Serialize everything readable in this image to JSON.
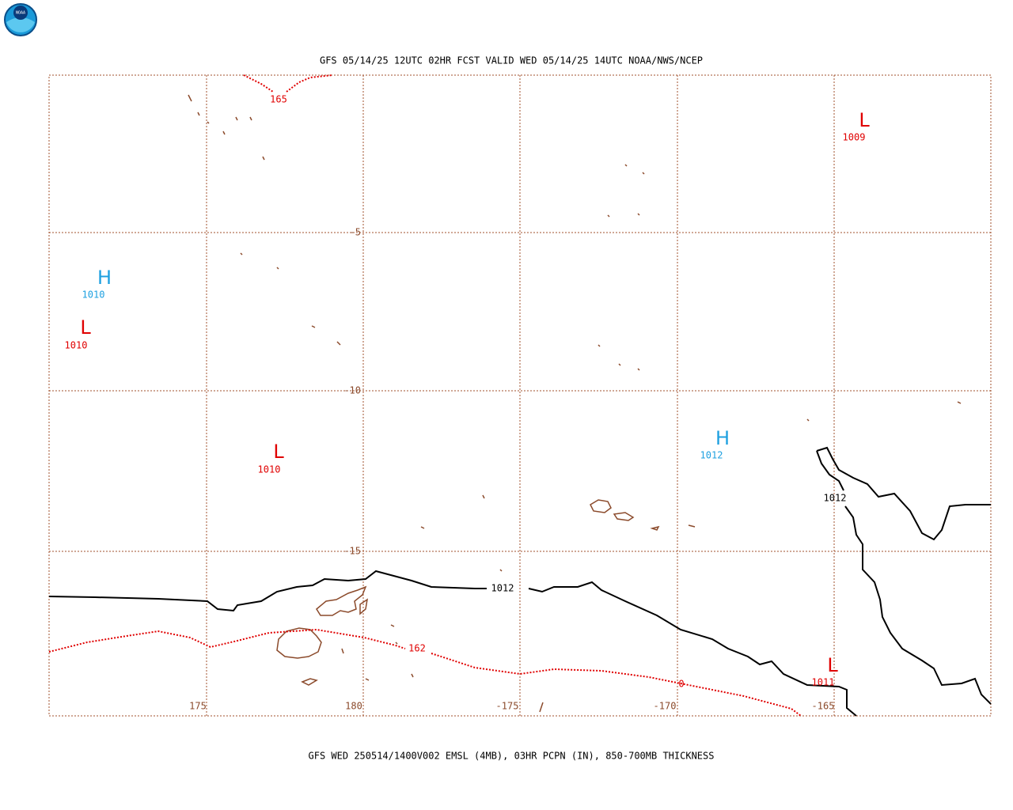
{
  "title": "GFS 05/14/25 12UTC 02HR FCST VALID WED 05/14/25 14UTC NOAA/NWS/NCEP",
  "footer": "GFS WED 250514/1400V002 EMSL (4MB), 03HR PCPN (IN), 850-700MB THICKNESS",
  "lat_labels": [
    "-5",
    "-10",
    "-15"
  ],
  "lon_labels": [
    "175",
    "180",
    "-175",
    "-170",
    "-165"
  ],
  "centers": [
    {
      "symbol": "H",
      "pressure": "1010"
    },
    {
      "symbol": "L",
      "pressure": "1010"
    },
    {
      "symbol": "L",
      "pressure": "1010"
    },
    {
      "symbol": "H",
      "pressure": "1012"
    },
    {
      "symbol": "L",
      "pressure": "1009"
    },
    {
      "symbol": "L",
      "pressure": "1011"
    }
  ],
  "contour_labels": [
    "165",
    "162",
    "0",
    "1012",
    "1012"
  ]
}
